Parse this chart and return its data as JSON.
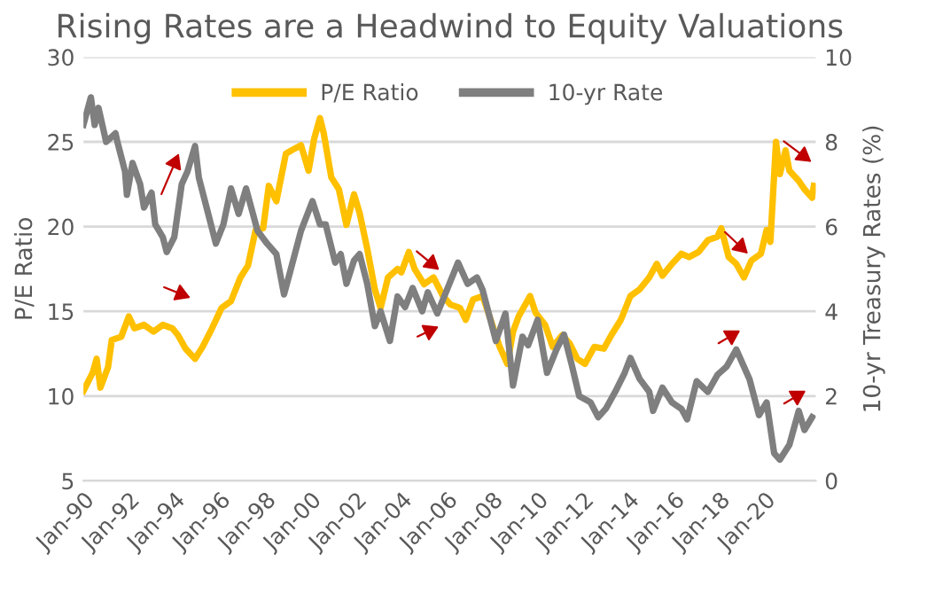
{
  "chart_data": {
    "type": "line",
    "title": "Rising Rates are a Headwind to Equity Valuations",
    "ylabel": "P/E Ratio",
    "y2label": "10-yr Treasury Rates (%)",
    "ylim": [
      5,
      30
    ],
    "yticks": [
      5,
      10,
      15,
      20,
      25,
      30
    ],
    "y2lim": [
      0,
      10
    ],
    "y2ticks": [
      0,
      2,
      4,
      6,
      8,
      10
    ],
    "xlim": [
      "1990-01",
      "2022-04"
    ],
    "xticks": [
      {
        "value": "1990-01",
        "label": "Jan-90"
      },
      {
        "value": "1992-01",
        "label": "Jan-92"
      },
      {
        "value": "1994-01",
        "label": "Jan-94"
      },
      {
        "value": "1996-01",
        "label": "Jan-96"
      },
      {
        "value": "1998-01",
        "label": "Jan-98"
      },
      {
        "value": "2000-01",
        "label": "Jan-00"
      },
      {
        "value": "2002-01",
        "label": "Jan-02"
      },
      {
        "value": "2004-01",
        "label": "Jan-04"
      },
      {
        "value": "2006-01",
        "label": "Jan-06"
      },
      {
        "value": "2008-01",
        "label": "Jan-08"
      },
      {
        "value": "2010-01",
        "label": "Jan-10"
      },
      {
        "value": "2012-01",
        "label": "Jan-12"
      },
      {
        "value": "2014-01",
        "label": "Jan-14"
      },
      {
        "value": "2016-01",
        "label": "Jan-16"
      },
      {
        "value": "2018-01",
        "label": "Jan-18"
      },
      {
        "value": "2020-01",
        "label": "Jan-20"
      }
    ],
    "grid": "y",
    "legend": "top",
    "marker": "none",
    "line_style": "solid",
    "series": [
      {
        "name": "P/E Ratio",
        "color": "#ffc000",
        "x": [
          "1990-01",
          "1990-06",
          "1990-08",
          "1990-10",
          "1991-02",
          "1991-04",
          "1991-09",
          "1992-01",
          "1992-04",
          "1992-09",
          "1993-02",
          "1993-07",
          "1993-12",
          "1994-03",
          "1994-07",
          "1994-12",
          "1995-04",
          "1995-09",
          "1996-02",
          "1996-07",
          "1996-12",
          "1997-04",
          "1997-08",
          "1997-12",
          "1998-03",
          "1998-07",
          "1998-12",
          "1999-03",
          "1999-08",
          "1999-12",
          "2000-03",
          "2000-06",
          "2000-08",
          "2000-12",
          "2001-04",
          "2001-08",
          "2001-12",
          "2002-03",
          "2002-07",
          "2002-11",
          "2003-02",
          "2003-06",
          "2003-11",
          "2004-01",
          "2004-05",
          "2004-08",
          "2005-01",
          "2005-06",
          "2005-11",
          "2006-03",
          "2006-08",
          "2006-11",
          "2007-03",
          "2007-08",
          "2007-11",
          "2008-05",
          "2008-09",
          "2008-12",
          "2009-03",
          "2009-09",
          "2009-12",
          "2010-05",
          "2010-09",
          "2011-02",
          "2011-06",
          "2011-10",
          "2012-02",
          "2012-07",
          "2012-12",
          "2013-04",
          "2013-09",
          "2014-02",
          "2014-07",
          "2014-12",
          "2015-04",
          "2015-07",
          "2015-12",
          "2016-05",
          "2016-09",
          "2017-02",
          "2017-07",
          "2017-12",
          "2018-02",
          "2018-06",
          "2018-10",
          "2019-02",
          "2019-06",
          "2019-11",
          "2020-02",
          "2020-04",
          "2020-07",
          "2020-09",
          "2020-12",
          "2021-02",
          "2021-07",
          "2021-10",
          "2022-02",
          "2022-03"
        ],
        "values": [
          10.3,
          11.4,
          12.2,
          10.5,
          11.7,
          13.3,
          13.5,
          14.7,
          14.0,
          14.2,
          13.8,
          14.2,
          14.0,
          13.6,
          12.8,
          12.2,
          12.9,
          14.0,
          15.2,
          15.6,
          17.0,
          17.7,
          19.8,
          19.9,
          22.4,
          21.5,
          24.3,
          24.5,
          24.8,
          23.3,
          25.2,
          26.4,
          25.5,
          22.9,
          22.2,
          20.1,
          21.9,
          20.8,
          18.7,
          16.3,
          15.2,
          17.0,
          17.5,
          17.3,
          18.5,
          17.5,
          16.6,
          17.0,
          15.9,
          15.4,
          15.2,
          14.5,
          15.7,
          15.9,
          14.9,
          12.9,
          11.9,
          13.8,
          14.7,
          15.9,
          14.9,
          14.2,
          12.9,
          13.6,
          13.1,
          12.2,
          11.9,
          12.9,
          12.8,
          13.6,
          14.5,
          15.9,
          16.3,
          17.0,
          17.8,
          17.1,
          17.8,
          18.4,
          18.2,
          18.5,
          19.2,
          19.4,
          19.9,
          18.2,
          17.8,
          17.0,
          18.0,
          18.4,
          19.8,
          19.1,
          25.0,
          23.1,
          24.5,
          23.3,
          22.7,
          22.2,
          21.7,
          22.4
        ]
      },
      {
        "name": "10-yr Rate",
        "color": "#7f7f7f",
        "axis": "y2",
        "x": [
          "1990-01",
          "1990-05",
          "1990-07",
          "1990-09",
          "1991-01",
          "1991-06",
          "1991-07",
          "1991-11",
          "1991-12",
          "1992-03",
          "1992-07",
          "1992-09",
          "1993-01",
          "1993-03",
          "1993-07",
          "1993-09",
          "1994-01",
          "1994-05",
          "1994-08",
          "1994-12",
          "1995-02",
          "1995-07",
          "1995-11",
          "1996-03",
          "1996-07",
          "1996-11",
          "1997-03",
          "1997-09",
          "1998-02",
          "1998-07",
          "1998-11",
          "1999-02",
          "1999-08",
          "2000-02",
          "2000-06",
          "2000-09",
          "2001-02",
          "2001-05",
          "2001-08",
          "2001-12",
          "2002-03",
          "2002-07",
          "2002-11",
          "2003-02",
          "2003-07",
          "2003-11",
          "2004-03",
          "2004-07",
          "2004-12",
          "2005-03",
          "2005-08",
          "2006-01",
          "2006-07",
          "2006-12",
          "2007-05",
          "2007-08",
          "2008-03",
          "2008-08",
          "2008-12",
          "2009-05",
          "2009-08",
          "2010-01",
          "2010-06",
          "2010-11",
          "2011-03",
          "2011-07",
          "2011-11",
          "2012-05",
          "2012-09",
          "2013-01",
          "2013-06",
          "2013-11",
          "2014-02",
          "2014-07",
          "2014-12",
          "2015-02",
          "2015-07",
          "2015-12",
          "2016-05",
          "2016-08",
          "2017-01",
          "2017-07",
          "2017-12",
          "2018-05",
          "2018-10",
          "2019-05",
          "2019-10",
          "2020-02",
          "2020-06",
          "2020-09",
          "2021-02",
          "2021-07",
          "2021-10",
          "2022-02"
        ],
        "values": [
          8.4,
          9.05,
          8.4,
          8.8,
          8.0,
          8.2,
          8.0,
          7.3,
          6.75,
          7.5,
          7.0,
          6.45,
          6.8,
          6.05,
          5.75,
          5.4,
          5.75,
          7.0,
          7.3,
          7.9,
          7.15,
          6.3,
          5.6,
          6.05,
          6.9,
          6.3,
          6.9,
          5.9,
          5.6,
          5.35,
          4.4,
          4.9,
          5.9,
          6.6,
          6.05,
          6.05,
          5.15,
          5.35,
          4.65,
          5.2,
          5.35,
          4.65,
          3.65,
          4.0,
          3.3,
          4.35,
          4.1,
          4.55,
          4.0,
          4.45,
          3.95,
          4.5,
          5.15,
          4.65,
          4.8,
          4.5,
          3.3,
          3.95,
          2.25,
          3.4,
          3.2,
          3.8,
          2.55,
          3.1,
          3.45,
          2.75,
          2.0,
          1.85,
          1.5,
          1.7,
          2.1,
          2.55,
          2.9,
          2.4,
          2.1,
          1.65,
          2.2,
          1.85,
          1.7,
          1.45,
          2.35,
          2.1,
          2.5,
          2.7,
          3.1,
          2.4,
          1.55,
          1.85,
          0.65,
          0.5,
          0.85,
          1.65,
          1.2,
          1.5
        ]
      }
    ]
  }
}
